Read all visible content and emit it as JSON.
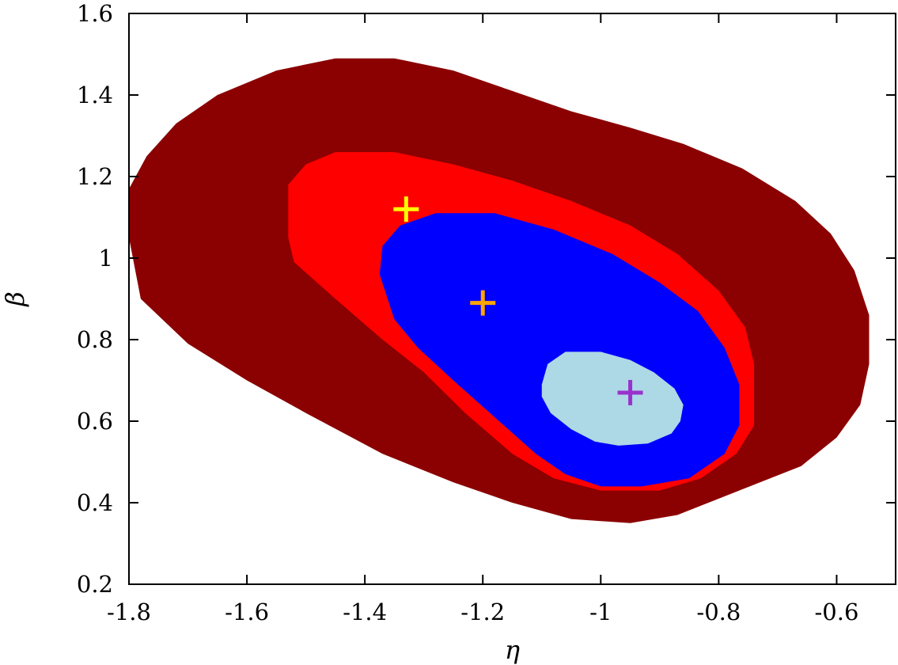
{
  "chart_data": {
    "type": "scatter",
    "title": "",
    "xlabel": "η",
    "ylabel": "β",
    "xlim": [
      -1.8,
      -0.5
    ],
    "ylim": [
      0.2,
      1.6
    ],
    "x_ticks": [
      "-1.8",
      "-1.6",
      "-1.4",
      "-1.2",
      "-1",
      "-0.8",
      "-0.6"
    ],
    "y_ticks": [
      "0.2",
      "0.4",
      "0.6",
      "0.8",
      "1",
      "1.2",
      "1.4",
      "1.6"
    ],
    "grid": false,
    "regions": [
      {
        "color": "#8b0000",
        "boundary": [
          [
            -1.8,
            1.05
          ],
          [
            -1.8,
            1.17
          ],
          [
            -1.77,
            1.25
          ],
          [
            -1.72,
            1.33
          ],
          [
            -1.65,
            1.4
          ],
          [
            -1.55,
            1.46
          ],
          [
            -1.45,
            1.49
          ],
          [
            -1.35,
            1.49
          ],
          [
            -1.25,
            1.46
          ],
          [
            -1.15,
            1.41
          ],
          [
            -1.05,
            1.36
          ],
          [
            -0.95,
            1.32
          ],
          [
            -0.86,
            1.28
          ],
          [
            -0.76,
            1.22
          ],
          [
            -0.67,
            1.14
          ],
          [
            -0.61,
            1.06
          ],
          [
            -0.57,
            0.97
          ],
          [
            -0.545,
            0.86
          ],
          [
            -0.545,
            0.74
          ],
          [
            -0.56,
            0.64
          ],
          [
            -0.6,
            0.56
          ],
          [
            -0.66,
            0.49
          ],
          [
            -0.73,
            0.45
          ],
          [
            -0.8,
            0.41
          ],
          [
            -0.87,
            0.37
          ],
          [
            -0.95,
            0.35
          ],
          [
            -1.05,
            0.36
          ],
          [
            -1.15,
            0.4
          ],
          [
            -1.25,
            0.45
          ],
          [
            -1.37,
            0.52
          ],
          [
            -1.5,
            0.62
          ],
          [
            -1.6,
            0.7
          ],
          [
            -1.7,
            0.79
          ],
          [
            -1.78,
            0.9
          ]
        ]
      },
      {
        "color": "#ff0000",
        "boundary": [
          [
            -1.53,
            1.05
          ],
          [
            -1.53,
            1.18
          ],
          [
            -1.5,
            1.23
          ],
          [
            -1.45,
            1.26
          ],
          [
            -1.35,
            1.26
          ],
          [
            -1.25,
            1.23
          ],
          [
            -1.15,
            1.19
          ],
          [
            -1.05,
            1.14
          ],
          [
            -0.95,
            1.08
          ],
          [
            -0.87,
            1.01
          ],
          [
            -0.8,
            0.92
          ],
          [
            -0.755,
            0.83
          ],
          [
            -0.74,
            0.74
          ],
          [
            -0.74,
            0.59
          ],
          [
            -0.77,
            0.52
          ],
          [
            -0.83,
            0.46
          ],
          [
            -0.9,
            0.43
          ],
          [
            -1.0,
            0.43
          ],
          [
            -1.08,
            0.46
          ],
          [
            -1.15,
            0.52
          ],
          [
            -1.23,
            0.62
          ],
          [
            -1.3,
            0.72
          ],
          [
            -1.37,
            0.8
          ],
          [
            -1.45,
            0.9
          ],
          [
            -1.52,
            0.99
          ]
        ]
      },
      {
        "color": "#0000ff",
        "boundary": [
          [
            -1.375,
            0.96
          ],
          [
            -1.37,
            1.03
          ],
          [
            -1.34,
            1.08
          ],
          [
            -1.28,
            1.11
          ],
          [
            -1.18,
            1.11
          ],
          [
            -1.08,
            1.07
          ],
          [
            -0.98,
            1.01
          ],
          [
            -0.9,
            0.94
          ],
          [
            -0.835,
            0.87
          ],
          [
            -0.79,
            0.78
          ],
          [
            -0.765,
            0.69
          ],
          [
            -0.765,
            0.59
          ],
          [
            -0.79,
            0.52
          ],
          [
            -0.85,
            0.46
          ],
          [
            -0.93,
            0.44
          ],
          [
            -1.0,
            0.44
          ],
          [
            -1.06,
            0.47
          ],
          [
            -1.11,
            0.52
          ],
          [
            -1.18,
            0.61
          ],
          [
            -1.25,
            0.7
          ],
          [
            -1.31,
            0.78
          ],
          [
            -1.35,
            0.85
          ]
        ]
      },
      {
        "color": "#add8e6",
        "boundary": [
          [
            -1.1,
            0.69
          ],
          [
            -1.09,
            0.74
          ],
          [
            -1.06,
            0.77
          ],
          [
            -1.0,
            0.77
          ],
          [
            -0.95,
            0.75
          ],
          [
            -0.91,
            0.72
          ],
          [
            -0.875,
            0.68
          ],
          [
            -0.86,
            0.64
          ],
          [
            -0.865,
            0.6
          ],
          [
            -0.88,
            0.57
          ],
          [
            -0.92,
            0.545
          ],
          [
            -0.97,
            0.54
          ],
          [
            -1.01,
            0.55
          ],
          [
            -1.05,
            0.58
          ],
          [
            -1.085,
            0.62
          ],
          [
            -1.1,
            0.66
          ]
        ]
      }
    ],
    "markers": [
      {
        "x": -1.33,
        "y": 1.12,
        "color": "#ffff00"
      },
      {
        "x": -1.2,
        "y": 0.89,
        "color": "#ffa500"
      },
      {
        "x": -0.95,
        "y": 0.67,
        "color": "#9932cc"
      }
    ]
  }
}
